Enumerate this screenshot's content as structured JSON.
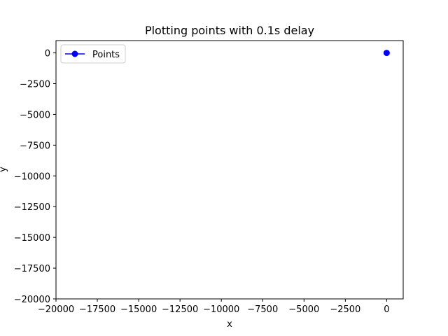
{
  "chart_data": {
    "type": "line",
    "title": "Plotting points with 0.1s delay",
    "xlabel": "x",
    "ylabel": "y",
    "xlim": [
      -20000,
      1000
    ],
    "ylim": [
      -20000,
      1000
    ],
    "xticks": [
      -20000,
      -17500,
      -15000,
      -12500,
      -10000,
      -7500,
      -5000,
      -2500,
      0
    ],
    "yticks": [
      0,
      -2500,
      -5000,
      -7500,
      -10000,
      -12500,
      -15000,
      -17500,
      -20000
    ],
    "xtick_labels": [
      "−20000",
      "−17500",
      "−15000",
      "−12500",
      "−10000",
      "−7500",
      "−5000",
      "−2500",
      "0"
    ],
    "ytick_labels": [
      "0",
      "−2500",
      "−5000",
      "−7500",
      "−10000",
      "−12500",
      "−15000",
      "−17500",
      "−20000"
    ],
    "grid": false,
    "legend_position": "upper-left",
    "series": [
      {
        "name": "Points",
        "color": "#0000ff",
        "marker": "circle",
        "points": [
          {
            "x": 0,
            "y": 0
          }
        ]
      }
    ]
  }
}
